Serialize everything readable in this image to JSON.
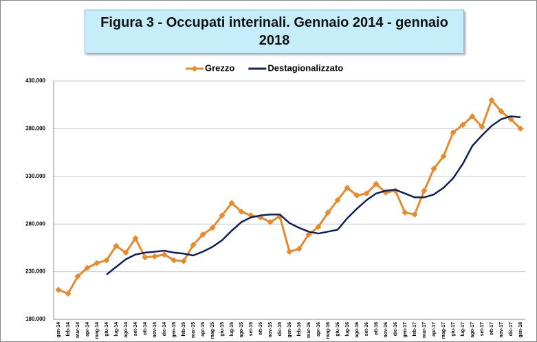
{
  "chart_data": {
    "type": "line",
    "title": "Figura 3 - Occupati interinali. Gennaio 2014 - gennaio 2018",
    "categories": [
      "gen-14",
      "feb-14",
      "mar-14",
      "apr-14",
      "mag-14",
      "giu-14",
      "lug-14",
      "ago-14",
      "set-14",
      "ott-14",
      "nov-14",
      "dic-14",
      "gen-15",
      "feb-15",
      "mar-15",
      "apr-15",
      "mag-15",
      "giu-15",
      "lug-15",
      "ago-15",
      "set-15",
      "ott-15",
      "nov-15",
      "dic-15",
      "gen-16",
      "feb-16",
      "mar-16",
      "apr-16",
      "mag-16",
      "giu-16",
      "lug-16",
      "ago-16",
      "set-16",
      "ott-16",
      "nov-16",
      "dic-16",
      "gen-17",
      "feb-17",
      "mar-17",
      "apr-17",
      "mag-17",
      "giu-17",
      "lug-17",
      "ago-17",
      "set-17",
      "ott-17",
      "nov-17",
      "dic-17",
      "gen-18"
    ],
    "series": [
      {
        "name": "Grezzo",
        "color": "#e8892b",
        "marker": "diamond",
        "values": [
          211000,
          207000,
          225000,
          234000,
          239000,
          242000,
          257000,
          250000,
          265000,
          245000,
          246000,
          248000,
          242000,
          241000,
          258000,
          269000,
          276000,
          289000,
          302000,
          293000,
          289000,
          287000,
          282000,
          288000,
          251000,
          254000,
          269000,
          277000,
          292000,
          305000,
          318000,
          310000,
          312000,
          322000,
          313000,
          315000,
          292000,
          290000,
          315000,
          338000,
          351000,
          376000,
          384000,
          393000,
          382000,
          410000,
          398000,
          390000,
          380000
        ]
      },
      {
        "name": "Destagionalizzato",
        "color": "#0d1f5c",
        "values": [
          null,
          null,
          null,
          null,
          null,
          227000,
          235000,
          243000,
          248000,
          250000,
          251000,
          252000,
          250000,
          249000,
          247000,
          251000,
          256000,
          263000,
          273000,
          282000,
          287000,
          289000,
          290000,
          290000,
          281000,
          276000,
          272000,
          270000,
          272000,
          274000,
          286000,
          296000,
          305000,
          312000,
          315000,
          316000,
          312000,
          308000,
          308000,
          311000,
          318000,
          328000,
          343000,
          362000,
          373000,
          383000,
          390000,
          393000,
          392000
        ]
      }
    ],
    "ylim": [
      180000,
      430000
    ],
    "yticks": [
      {
        "value": 180000,
        "label": "180.000"
      },
      {
        "value": 230000,
        "label": "230.000"
      },
      {
        "value": 280000,
        "label": "280.000"
      },
      {
        "value": 330000,
        "label": "330.000"
      },
      {
        "value": 380000,
        "label": "380.000"
      },
      {
        "value": 430000,
        "label": "430.000"
      }
    ],
    "grid": true,
    "legend": "top"
  }
}
